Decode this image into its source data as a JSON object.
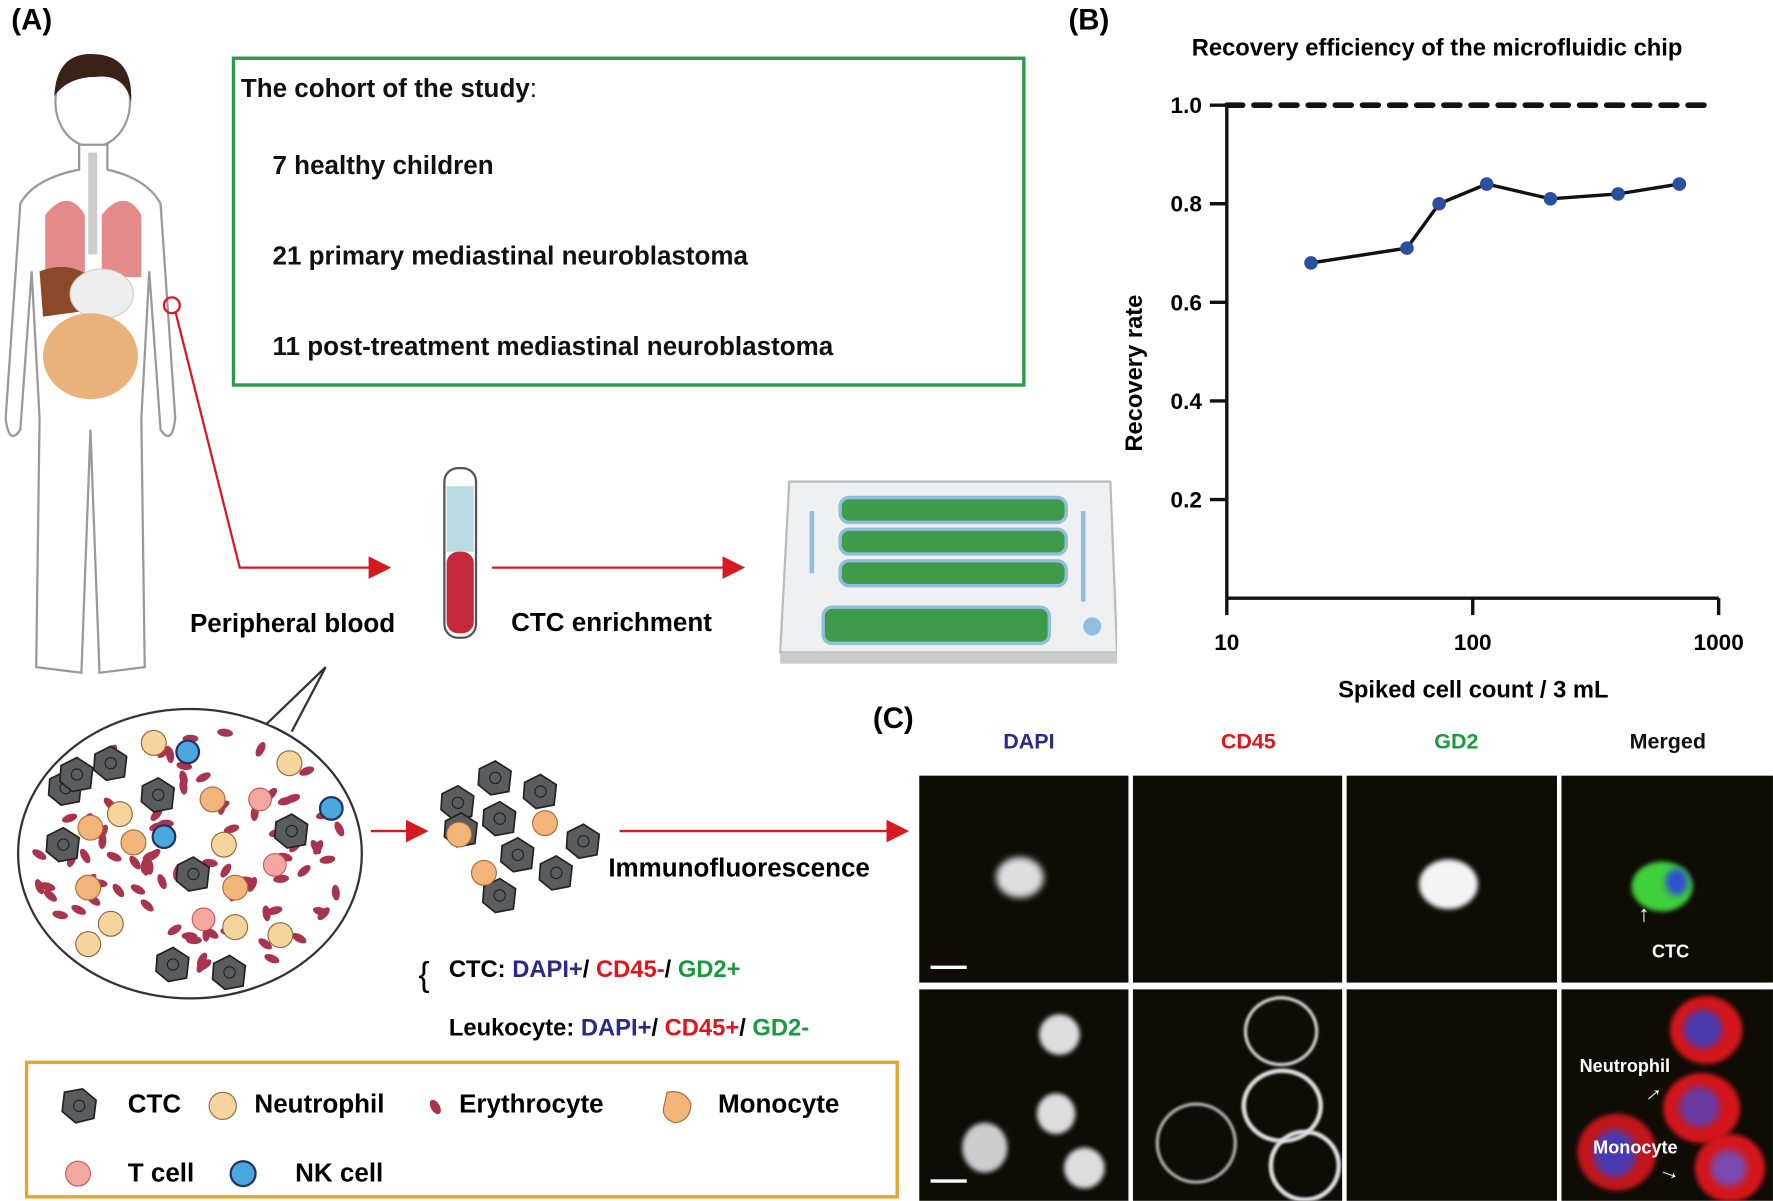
{
  "panels": {
    "a": "(A)",
    "b": "(B)",
    "c": "(C)"
  },
  "cohort": {
    "title": "The cohort of the study",
    "title_suffix": ":",
    "items": [
      "7 healthy children",
      "21 primary mediastinal neuroblastoma",
      "11 post-treatment mediastinal neuroblastoma"
    ]
  },
  "flow": {
    "peripheral_blood": "Peripheral blood",
    "ctc_enrichment": "CTC enrichment",
    "immunofluorescence": "Immunofluorescence"
  },
  "criteria": {
    "ctc": {
      "label": "CTC: ",
      "dapi": "DAPI+",
      "sep1": "/ ",
      "cd45": "CD45-",
      "sep2": "/ ",
      "gd2": "GD2+"
    },
    "leukocyte": {
      "label": "Leukocyte: ",
      "dapi": "DAPI+",
      "sep1": "/ ",
      "cd45": "CD45+",
      "sep2": "/ ",
      "gd2": "GD2-"
    }
  },
  "legend": [
    "CTC",
    "Neutrophil",
    "Erythrocyte",
    "Monocyte",
    "T cell",
    "NK cell"
  ],
  "microscopy": {
    "columns": [
      "DAPI",
      "CD45",
      "GD2",
      "Merged"
    ],
    "annotations": {
      "ctc": "CTC",
      "neutrophil": "Neutrophil",
      "monocyte": "Monocyte"
    }
  },
  "colors": {
    "dapi": "#2b2a8c",
    "cd45": "#e0161b",
    "gd2": "#1a9a3d",
    "point": "#2a4f9e",
    "cohort_border": "#2e9a47",
    "legend_border": "#e8a32e",
    "arrow": "#d71920"
  },
  "chart_data": {
    "type": "line",
    "title": "Recovery efficiency of the microfluidic chip",
    "xlabel": "Spiked cell count / 3 mL",
    "ylabel": "Recovery rate",
    "xscale": "log",
    "xlim": [
      10,
      1000
    ],
    "ylim": [
      0,
      1.0
    ],
    "xticks": [
      "10",
      "100",
      "1000"
    ],
    "yticks": [
      "0.2",
      "0.4",
      "0.6",
      "0.8",
      "1.0"
    ],
    "reference_line": {
      "y": 1.0,
      "style": "dashed"
    },
    "x": [
      22,
      54,
      73,
      114,
      207,
      390,
      692
    ],
    "y": [
      0.68,
      0.71,
      0.8,
      0.84,
      0.81,
      0.82,
      0.84
    ]
  }
}
